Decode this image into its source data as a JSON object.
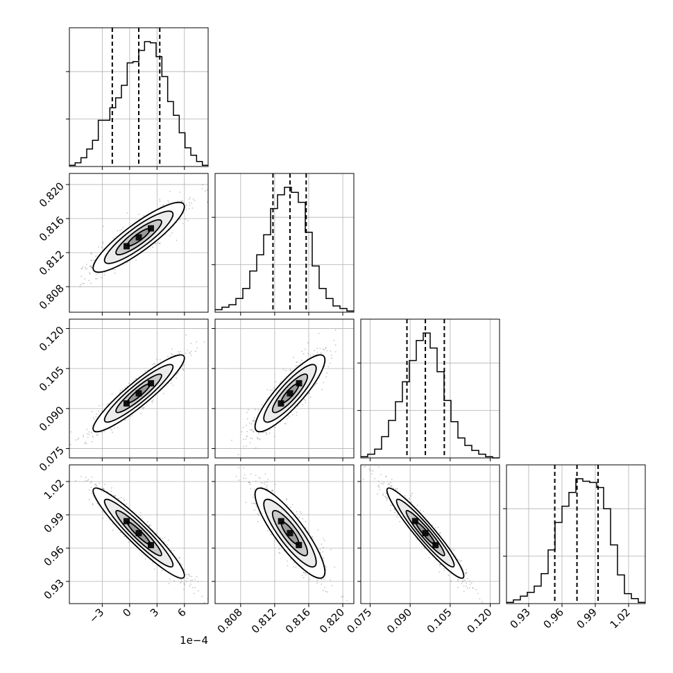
{
  "chart_data": {
    "type": "corner",
    "parameters": [
      {
        "id": "p0",
        "range": [
          -6.6,
          8.6
        ],
        "axis_offset_label": "1e−4",
        "ticks": [
          {
            "value": -3,
            "label": "−3"
          },
          {
            "value": 0,
            "label": "0"
          },
          {
            "value": 3,
            "label": "3"
          },
          {
            "value": 6,
            "label": "6"
          }
        ],
        "quantiles": [
          -1.9,
          1.0,
          3.3
        ],
        "histogram_range": [
          -6.6,
          8.6
        ],
        "histogram": [
          1,
          3,
          7,
          14,
          21,
          37,
          37,
          47,
          55,
          65,
          83,
          84,
          93,
          100,
          99,
          88,
          72,
          52,
          41,
          27,
          15,
          9,
          4,
          1
        ]
      },
      {
        "id": "p1",
        "range": [
          0.805,
          0.8213
        ],
        "ticks": [
          {
            "value": 0.808,
            "label": "0.808"
          },
          {
            "value": 0.812,
            "label": "0.812"
          },
          {
            "value": 0.816,
            "label": "0.816"
          },
          {
            "value": 0.82,
            "label": "0.820"
          }
        ],
        "quantiles": [
          0.8118,
          0.8138,
          0.8157
        ],
        "histogram_range": [
          0.805,
          0.8213
        ],
        "histogram": [
          2,
          4,
          6,
          11,
          19,
          33,
          46,
          62,
          83,
          94,
          100,
          96,
          88,
          64,
          37,
          19,
          11,
          5,
          3,
          1
        ]
      },
      {
        "id": "p2",
        "range": [
          0.0715,
          0.1235
        ],
        "ticks": [
          {
            "value": 0.075,
            "label": "0.075"
          },
          {
            "value": 0.09,
            "label": "0.090"
          },
          {
            "value": 0.105,
            "label": "0.105"
          },
          {
            "value": 0.12,
            "label": "0.120"
          }
        ],
        "quantiles": [
          0.0888,
          0.0957,
          0.1028
        ],
        "histogram_range": [
          0.0715,
          0.1235
        ],
        "histogram": [
          1,
          3,
          7,
          17,
          30,
          45,
          61,
          78,
          94,
          100,
          88,
          69,
          46,
          29,
          16,
          10,
          6,
          3,
          1,
          0
        ]
      },
      {
        "id": "p3",
        "range": [
          0.91,
          1.035
        ],
        "ticks": [
          {
            "value": 0.93,
            "label": "0.93"
          },
          {
            "value": 0.96,
            "label": "0.96"
          },
          {
            "value": 0.99,
            "label": "0.99"
          },
          {
            "value": 1.02,
            "label": "1.02"
          }
        ],
        "quantiles": [
          0.9535,
          0.9735,
          0.9925
        ],
        "histogram_range": [
          0.91,
          1.035
        ],
        "histogram": [
          1,
          3,
          6,
          9,
          14,
          24,
          43,
          65,
          78,
          89,
          100,
          98,
          97,
          93,
          76,
          47,
          23,
          8,
          4,
          1
        ]
      }
    ],
    "pairs": [
      {
        "x": 0,
        "y": 1,
        "center": [
          1.0,
          0.8138
        ],
        "sigma": [
          2.5,
          0.00205
        ],
        "rho": 0.88
      },
      {
        "x": 0,
        "y": 2,
        "center": [
          1.0,
          0.0957
        ],
        "sigma": [
          2.5,
          0.0072
        ],
        "rho": 0.92
      },
      {
        "x": 0,
        "y": 3,
        "center": [
          1.0,
          0.9735
        ],
        "sigma": [
          2.5,
          0.0203
        ],
        "rho": -0.94
      },
      {
        "x": 1,
        "y": 2,
        "center": [
          0.8138,
          0.0957
        ],
        "sigma": [
          0.00205,
          0.0072
        ],
        "rho": 0.87
      },
      {
        "x": 1,
        "y": 3,
        "center": [
          0.8138,
          0.9735
        ],
        "sigma": [
          0.00205,
          0.0203
        ],
        "rho": -0.86
      },
      {
        "x": 2,
        "y": 3,
        "center": [
          0.0957,
          0.9735
        ],
        "sigma": [
          0.0072,
          0.0203
        ],
        "rho": -0.95
      }
    ],
    "contour_levels_sigma": [
      0.5,
      1.0,
      1.5,
      2.0
    ],
    "grid": true,
    "colors": {
      "line": "#000000",
      "grid": "#b0b0b0",
      "scatter": "#555555",
      "fill_outer": "#ececec",
      "fill_mid": "#c9c9c9",
      "fill_inner": "#9a9a9a",
      "density_peak": "#101010"
    }
  }
}
